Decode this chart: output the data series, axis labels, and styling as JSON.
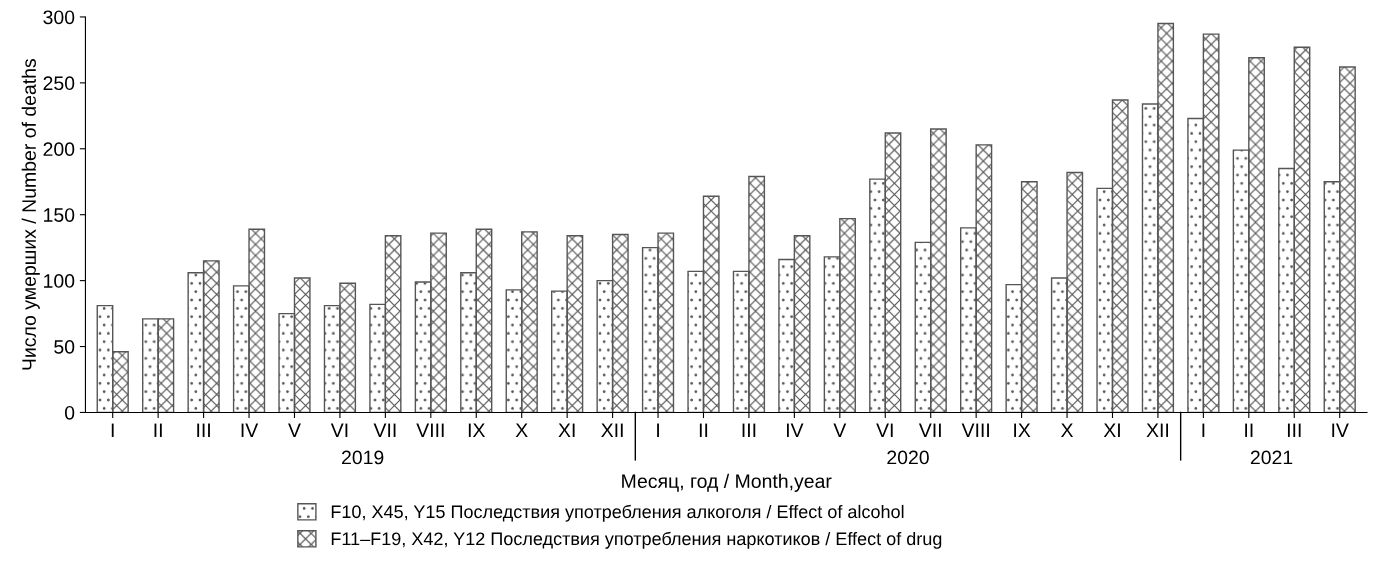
{
  "chart_data": {
    "type": "bar",
    "xlabel": "Месяц, год / Month,year",
    "ylabel": "Число умерших / Number of deaths",
    "categories": [
      "I",
      "II",
      "III",
      "IV",
      "V",
      "VI",
      "VII",
      "VIII",
      "IX",
      "X",
      "XI",
      "XII",
      "I",
      "II",
      "III",
      "IV",
      "V",
      "VI",
      "VII",
      "VIII",
      "IX",
      "X",
      "XI",
      "XII",
      "I",
      "II",
      "III",
      "IV"
    ],
    "annotations": [
      "2019",
      "2020",
      "2021"
    ],
    "series": [
      {
        "name": "F10, X45, Y15 Последствия употребления алкоголя / Effect of alcohol",
        "color": "#555555",
        "values": [
          81,
          71,
          106,
          96,
          75,
          81,
          82,
          99,
          106,
          93,
          92,
          100,
          125,
          107,
          107,
          116,
          118,
          177,
          129,
          140,
          97,
          102,
          170,
          234,
          223,
          199,
          185,
          175
        ]
      },
      {
        "name": "F11–F19, X42, Y12 Последствия употребления наркотиков / Effect of drug",
        "color": "#555555",
        "values": [
          46,
          71,
          115,
          139,
          102,
          98,
          134,
          136,
          139,
          137,
          134,
          135,
          136,
          164,
          179,
          134,
          147,
          212,
          215,
          203,
          175,
          182,
          237,
          295,
          287,
          269,
          277,
          262
        ]
      }
    ],
    "ylim": [
      0,
      300
    ],
    "yticks": [
      0,
      50,
      100,
      150,
      200,
      250,
      300
    ],
    "grid": false,
    "legend": "bottom"
  }
}
